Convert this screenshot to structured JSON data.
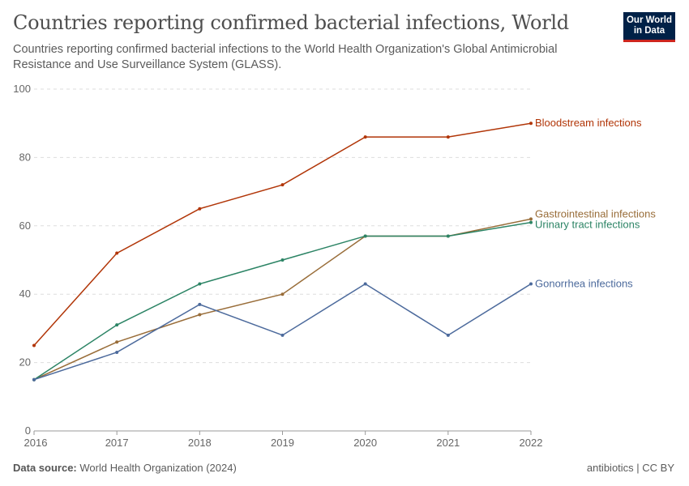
{
  "header": {
    "title": "Countries reporting confirmed bacterial infections, World",
    "subtitle": "Countries reporting confirmed bacterial infections to the World Health Organization's Global Antimicrobial Resistance and Use Surveillance System (GLASS).",
    "logo": "Our World in Data"
  },
  "footer": {
    "source_label": "Data source:",
    "source": "World Health Organization (2024)",
    "license": "antibiotics | CC BY"
  },
  "chart_data": {
    "type": "line",
    "x": [
      2016,
      2017,
      2018,
      2019,
      2020,
      2021,
      2022
    ],
    "ylim": [
      0,
      100
    ],
    "yticks": [
      0,
      20,
      40,
      60,
      80,
      100
    ],
    "grid": "horizontal dashed",
    "legend": "line-end labels right",
    "series": [
      {
        "name": "Bloodstream infections",
        "color": "#b13507",
        "values": [
          25,
          52,
          65,
          72,
          86,
          86,
          90
        ]
      },
      {
        "name": "Gastrointestinal infections",
        "color": "#996d39",
        "values": [
          15,
          26,
          34,
          40,
          57,
          57,
          62
        ]
      },
      {
        "name": "Urinary tract infections",
        "color": "#2c8465",
        "values": [
          15,
          31,
          43,
          50,
          57,
          57,
          61
        ]
      },
      {
        "name": "Gonorrhea infections",
        "color": "#4c6a9c",
        "values": [
          15,
          23,
          37,
          28,
          43,
          28,
          43
        ]
      }
    ]
  }
}
